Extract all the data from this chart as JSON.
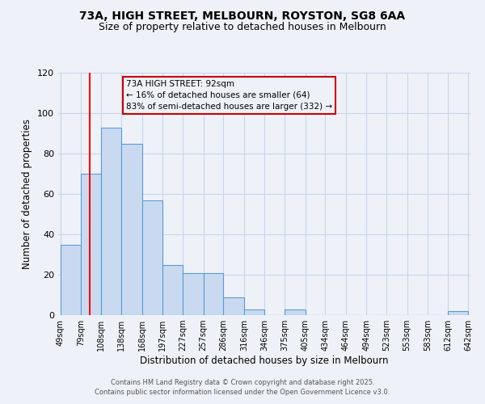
{
  "title": "73A, HIGH STREET, MELBOURN, ROYSTON, SG8 6AA",
  "subtitle": "Size of property relative to detached houses in Melbourn",
  "xlabel": "Distribution of detached houses by size in Melbourn",
  "ylabel": "Number of detached properties",
  "bin_edges": [
    49,
    79,
    108,
    138,
    168,
    197,
    227,
    257,
    286,
    316,
    346,
    375,
    405,
    434,
    464,
    494,
    523,
    553,
    583,
    612,
    642
  ],
  "bar_heights": [
    35,
    70,
    93,
    85,
    57,
    25,
    21,
    21,
    9,
    3,
    0,
    3,
    0,
    0,
    0,
    0,
    0,
    0,
    0,
    2
  ],
  "bar_color": "#c9daf0",
  "bar_edge_color": "#5b9bd5",
  "grid_color": "#c8d4e8",
  "background_color": "#eef2f8",
  "red_line_x": 92,
  "annotation_text_line1": "73A HIGH STREET: 92sqm",
  "annotation_text_line2": "← 16% of detached houses are smaller (64)",
  "annotation_text_line3": "83% of semi-detached houses are larger (332) →",
  "annotation_box_color": "#cc0000",
  "ylim": [
    0,
    120
  ],
  "yticks": [
    0,
    20,
    40,
    60,
    80,
    100,
    120
  ],
  "footer1": "Contains HM Land Registry data © Crown copyright and database right 2025.",
  "footer2": "Contains public sector information licensed under the Open Government Licence v3.0."
}
